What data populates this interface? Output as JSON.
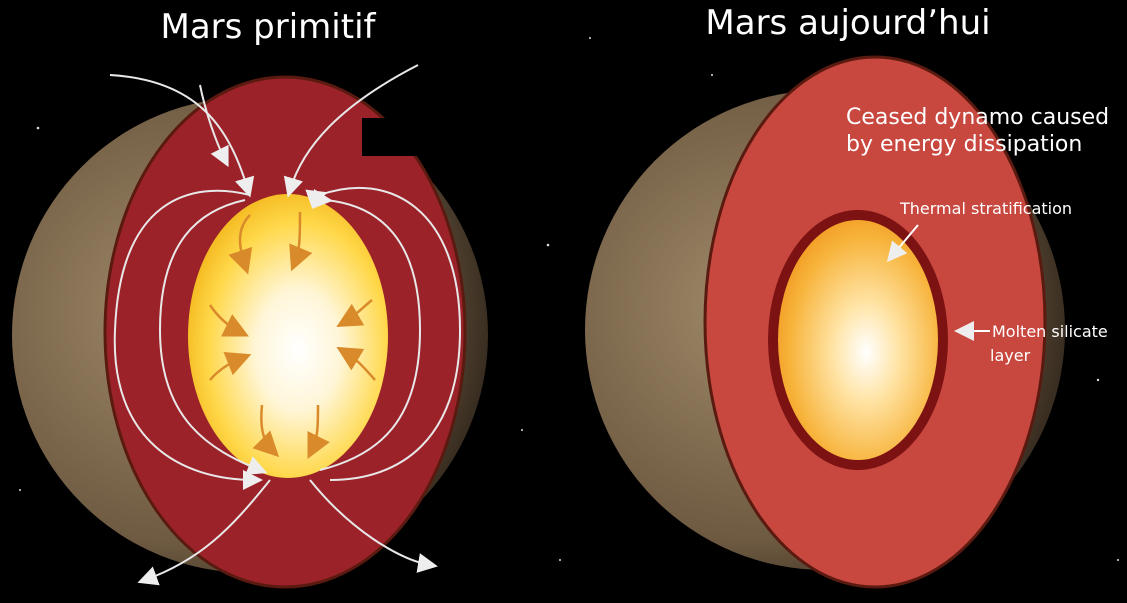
{
  "panels": [
    {
      "title": "Mars primitif"
    },
    {
      "title": "Mars aujourd’hui",
      "annotation": [
        "Ceased dynamo caused",
        "by energy dissipation"
      ],
      "labels": {
        "core": "Thermal stratification",
        "layer": [
          "Molten silicate",
          "layer"
        ]
      }
    }
  ]
}
